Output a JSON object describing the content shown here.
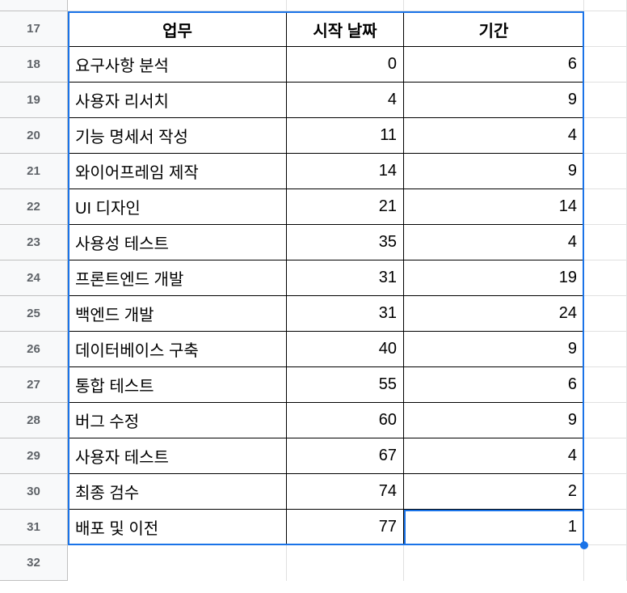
{
  "rowNumbers": [
    17,
    18,
    19,
    20,
    21,
    22,
    23,
    24,
    25,
    26,
    27,
    28,
    29,
    30,
    31,
    32
  ],
  "headers": {
    "task": "업무",
    "startDate": "시작 날짜",
    "duration": "기간"
  },
  "rows": [
    {
      "task": "요구사항 분석",
      "start": "0",
      "duration": "6"
    },
    {
      "task": "사용자 리서치",
      "start": "4",
      "duration": "9"
    },
    {
      "task": "기능 명세서 작성",
      "start": "11",
      "duration": "4"
    },
    {
      "task": "와이어프레임 제작",
      "start": "14",
      "duration": "9"
    },
    {
      "task": "UI 디자인",
      "start": "21",
      "duration": "14"
    },
    {
      "task": "사용성 테스트",
      "start": "35",
      "duration": "4"
    },
    {
      "task": "프론트엔드 개발",
      "start": "31",
      "duration": "19"
    },
    {
      "task": "백엔드 개발",
      "start": "31",
      "duration": "24"
    },
    {
      "task": "데이터베이스 구축",
      "start": "40",
      "duration": "9"
    },
    {
      "task": "통합 테스트",
      "start": "55",
      "duration": "6"
    },
    {
      "task": "버그 수정",
      "start": "60",
      "duration": "9"
    },
    {
      "task": "사용자 테스트",
      "start": "67",
      "duration": "4"
    },
    {
      "task": "최종 검수",
      "start": "74",
      "duration": "2"
    },
    {
      "task": "배포 및 이전",
      "start": "77",
      "duration": "1"
    }
  ],
  "colors": {
    "rowHeaderBg": "#f8f9fa",
    "cellBorder": "#000000",
    "gridBorder": "#e0e0e0",
    "selectionBorder": "#1a73e8"
  },
  "layout": {
    "selectionTop": 14,
    "selectionLeft": 84,
    "selectionWidth": 639,
    "selectionHeight": 660,
    "activeCellTop": 630,
    "activeCellLeft": 500,
    "activeCellWidth": 223,
    "activeCellHeight": 44,
    "fillHandleTop": 669,
    "fillHandleLeft": 718
  }
}
